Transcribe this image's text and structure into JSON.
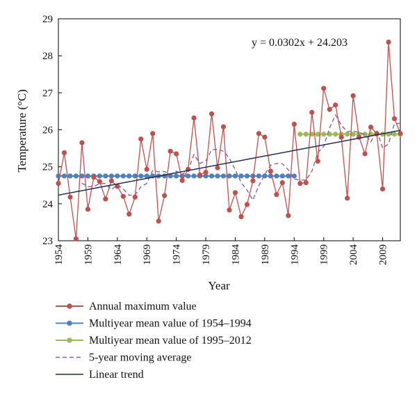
{
  "chart_data": {
    "type": "line",
    "xlabel": "Year",
    "ylabel": "Temperature (°C)",
    "xlim": [
      1954,
      2012
    ],
    "ylim": [
      23,
      29
    ],
    "x_ticks": [
      1954,
      1959,
      1964,
      1969,
      1974,
      1979,
      1984,
      1989,
      1994,
      1999,
      2004,
      2009
    ],
    "y_ticks": [
      23,
      24,
      25,
      26,
      27,
      28,
      29
    ],
    "grid": false,
    "legend_position": "bottom",
    "annotation": "y = 0.0302x + 24.203",
    "series": [
      {
        "name": "Annual maximum value",
        "color": "#c0504d",
        "style": "line-marker",
        "x": [
          1954,
          1955,
          1956,
          1957,
          1958,
          1959,
          1960,
          1961,
          1962,
          1963,
          1964,
          1965,
          1966,
          1967,
          1968,
          1969,
          1970,
          1971,
          1972,
          1973,
          1974,
          1975,
          1976,
          1977,
          1978,
          1979,
          1980,
          1981,
          1982,
          1983,
          1984,
          1985,
          1986,
          1987,
          1988,
          1989,
          1990,
          1991,
          1992,
          1993,
          1994,
          1995,
          1996,
          1997,
          1998,
          1999,
          2000,
          2001,
          2002,
          2003,
          2004,
          2005,
          2006,
          2007,
          2008,
          2009,
          2010,
          2011,
          2012
        ],
        "values": [
          24.55,
          25.38,
          24.18,
          23.05,
          25.65,
          23.85,
          24.72,
          24.6,
          24.13,
          24.62,
          24.47,
          24.2,
          23.72,
          24.18,
          25.75,
          24.93,
          25.9,
          23.53,
          24.22,
          25.42,
          25.35,
          24.63,
          24.93,
          26.32,
          24.78,
          24.85,
          26.43,
          24.97,
          26.08,
          23.83,
          24.3,
          23.65,
          23.98,
          24.62,
          25.9,
          25.8,
          24.88,
          24.25,
          24.57,
          23.68,
          26.15,
          24.55,
          24.57,
          26.47,
          25.15,
          27.12,
          26.55,
          26.67,
          25.8,
          24.15,
          26.92,
          25.8,
          25.35,
          26.07,
          25.9,
          24.4,
          28.37,
          26.3,
          25.9
        ]
      },
      {
        "name": "Multiyear mean value of 1954–1994",
        "color": "#4f81bd",
        "style": "marker-line",
        "x_range": [
          1954,
          1994
        ],
        "value": 24.75
      },
      {
        "name": "Multiyear mean value of 1995–2012",
        "color": "#9bbb59",
        "style": "marker-line",
        "x_range": [
          1995,
          2012
        ],
        "value": 25.88
      },
      {
        "name": "5-year moving average",
        "color": "#8064a2",
        "style": "dashed",
        "x": [
          1958,
          1959,
          1960,
          1961,
          1962,
          1963,
          1964,
          1965,
          1966,
          1967,
          1968,
          1969,
          1970,
          1971,
          1972,
          1973,
          1974,
          1975,
          1976,
          1977,
          1978,
          1979,
          1980,
          1981,
          1982,
          1983,
          1984,
          1985,
          1986,
          1987,
          1988,
          1989,
          1990,
          1991,
          1992,
          1993,
          1994,
          1995,
          1996,
          1997,
          1998,
          1999,
          2000,
          2001,
          2002,
          2003,
          2004,
          2005,
          2006,
          2007,
          2008,
          2009,
          2010,
          2011,
          2012
        ],
        "values": [
          24.56,
          24.46,
          24.47,
          24.54,
          24.55,
          24.38,
          24.51,
          24.4,
          24.23,
          24.24,
          24.46,
          24.55,
          24.9,
          24.86,
          24.87,
          24.8,
          24.88,
          24.79,
          24.91,
          25.33,
          25.09,
          25.16,
          25.46,
          25.47,
          25.42,
          25.23,
          24.92,
          24.57,
          24.37,
          24.1,
          24.49,
          24.79,
          25.04,
          25.09,
          25.08,
          24.92,
          24.67,
          24.64,
          24.64,
          24.88,
          25.38,
          25.55,
          26.05,
          26.4,
          26.12,
          25.95,
          25.96,
          25.93,
          25.87,
          25.67,
          25.99,
          25.5,
          25.62,
          26.17,
          26.17
        ]
      },
      {
        "name": "Linear trend",
        "color": "#1f2a4f",
        "style": "line",
        "slope": 0.0302,
        "intercept": 24.203
      }
    ]
  }
}
